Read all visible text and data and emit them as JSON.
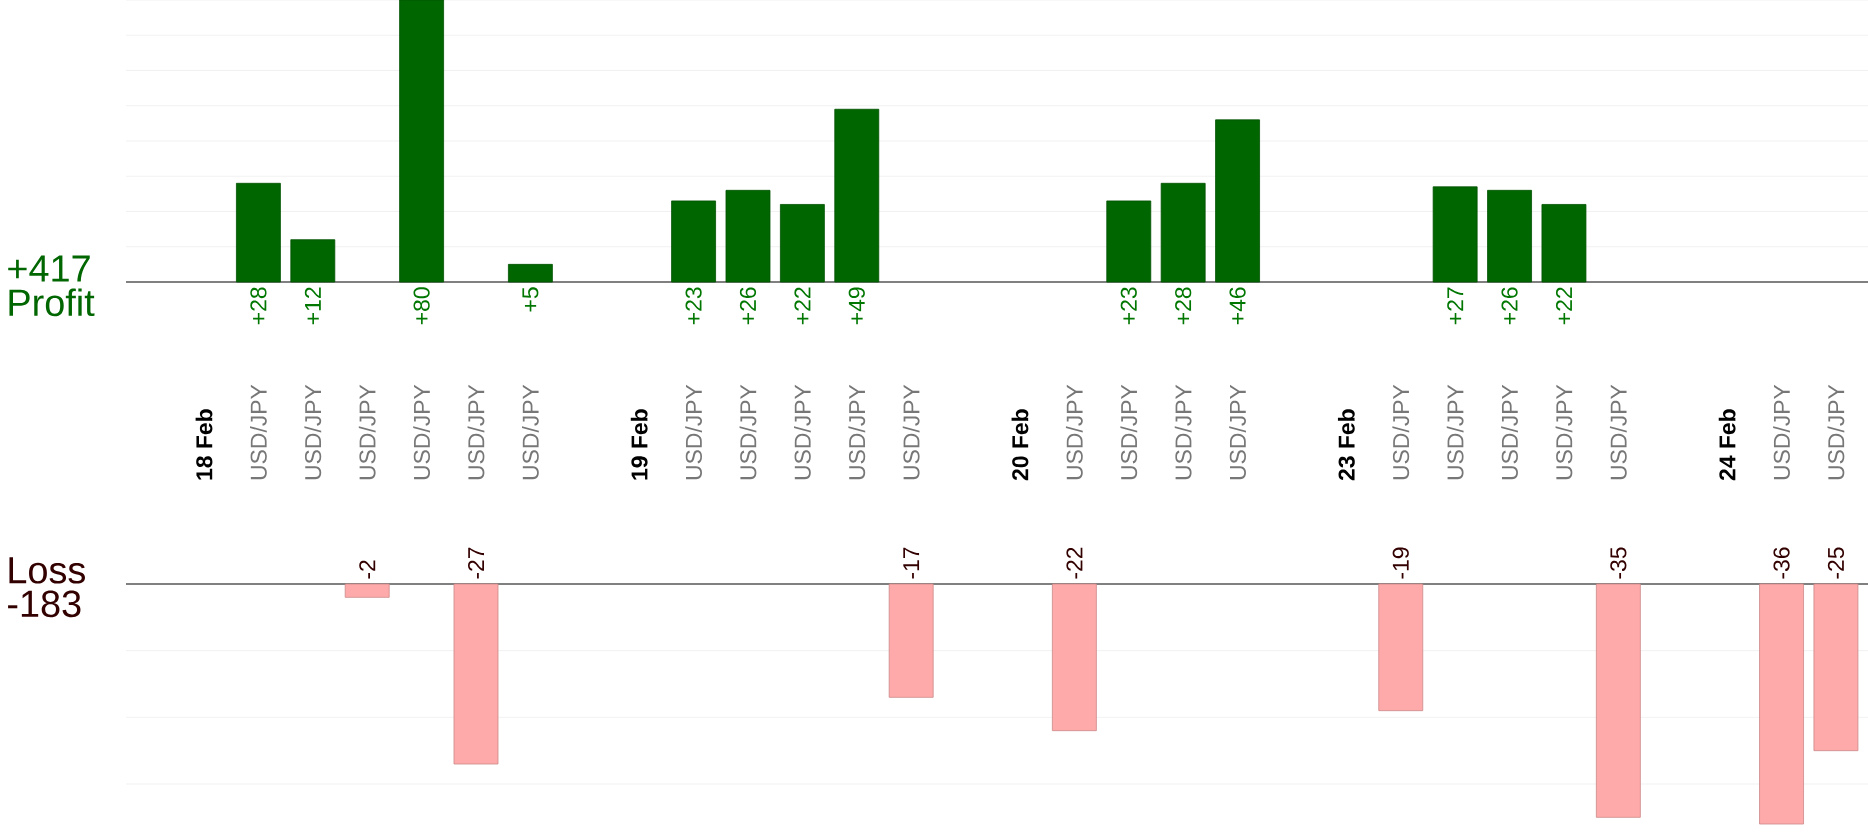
{
  "chart_data": [
    {
      "type": "bar",
      "ylabel": "Profit",
      "annotations": [
        "+417"
      ],
      "categories": [
        "18 Feb",
        "USD/JPY",
        "USD/JPY",
        "USD/JPY",
        "USD/JPY",
        "USD/JPY",
        "USD/JPY",
        null,
        "19 Feb",
        "USD/JPY",
        "USD/JPY",
        "USD/JPY",
        "USD/JPY",
        "USD/JPY",
        null,
        "20 Feb",
        "USD/JPY",
        "USD/JPY",
        "USD/JPY",
        "USD/JPY",
        null,
        "23 Feb",
        "USD/JPY",
        "USD/JPY",
        "USD/JPY",
        "USD/JPY",
        "USD/JPY",
        null,
        "24 Feb",
        "USD/JPY",
        "USD/JPY"
      ],
      "series": [
        {
          "color": "#006600",
          "values": [
            null,
            28,
            12,
            null,
            80,
            null,
            5,
            null,
            null,
            23,
            26,
            22,
            49,
            null,
            null,
            null,
            null,
            23,
            28,
            46,
            null,
            null,
            null,
            27,
            26,
            22,
            null,
            null,
            null,
            null,
            null
          ],
          "value_labels": [
            null,
            "+28",
            "+12",
            null,
            "+80",
            null,
            "+5",
            null,
            null,
            "+23",
            "+26",
            "+22",
            "+49",
            null,
            null,
            null,
            null,
            "+23",
            "+28",
            "+46",
            null,
            null,
            null,
            "+27",
            "+26",
            "+22",
            null,
            null,
            null,
            null,
            null
          ]
        }
      ],
      "yticks": [
        {
          "value": 10,
          "label": null
        },
        {
          "value": 20,
          "label": null
        },
        {
          "value": 30,
          "label": null
        },
        {
          "value": 40,
          "label": null
        },
        {
          "value": 50,
          "label": null
        },
        {
          "value": 60,
          "label": null
        },
        {
          "value": 70,
          "label": null
        },
        {
          "value": 80,
          "label": null
        }
      ],
      "grid": "y",
      "tick_labels": "x"
    },
    {
      "type": "bar",
      "ylabel": "Loss",
      "annotations": [
        "-183"
      ],
      "series": [
        {
          "color": "#ffaaaa",
          "values": [
            null,
            null,
            null,
            -2,
            null,
            -27,
            null,
            null,
            null,
            null,
            null,
            null,
            null,
            -17,
            null,
            null,
            -22,
            null,
            null,
            null,
            null,
            null,
            -19,
            null,
            null,
            null,
            -35,
            null,
            null,
            -36,
            -25
          ],
          "value_labels": [
            null,
            null,
            null,
            "-2",
            null,
            "-27",
            null,
            null,
            null,
            null,
            null,
            null,
            null,
            "-17",
            null,
            null,
            "-22",
            null,
            null,
            null,
            null,
            null,
            "-19",
            null,
            null,
            null,
            "-35",
            null,
            null,
            "-36",
            "-25"
          ]
        }
      ],
      "yticks": [
        {
          "value": -10,
          "label": null
        },
        {
          "value": -20,
          "label": null
        },
        {
          "value": -30,
          "label": null
        }
      ],
      "grid": "y",
      "tick_labels": false
    }
  ]
}
